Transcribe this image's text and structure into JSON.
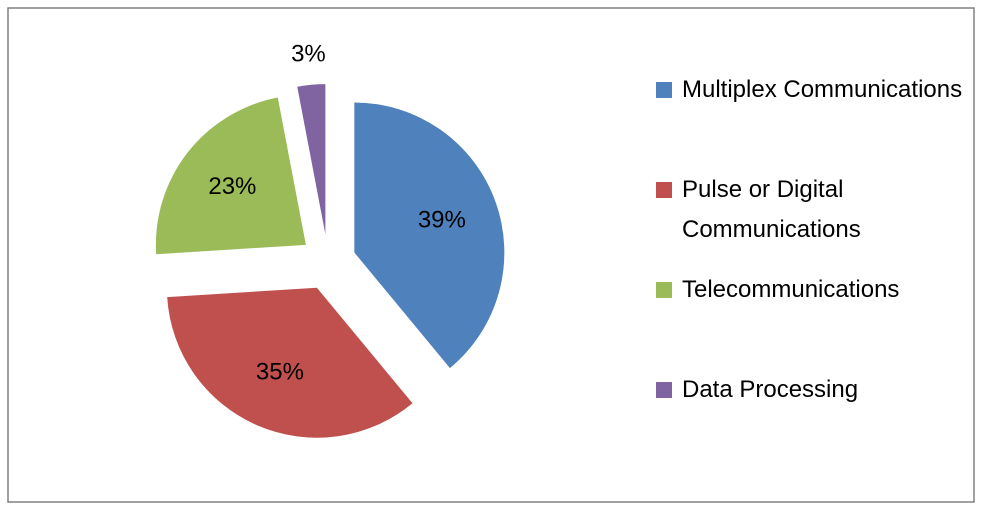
{
  "chart_data": {
    "type": "pie",
    "categories": [
      "Multiplex Communications",
      "Pulse or Digital Communications",
      "Telecommunications",
      "Data Processing"
    ],
    "values": [
      39,
      35,
      23,
      3
    ],
    "value_labels": [
      "39%",
      "35%",
      "23%",
      "3%"
    ],
    "colors": [
      "#4f81bd",
      "#c0504d",
      "#9bbb59",
      "#8064a2"
    ],
    "exploded": true,
    "legend": "right"
  }
}
